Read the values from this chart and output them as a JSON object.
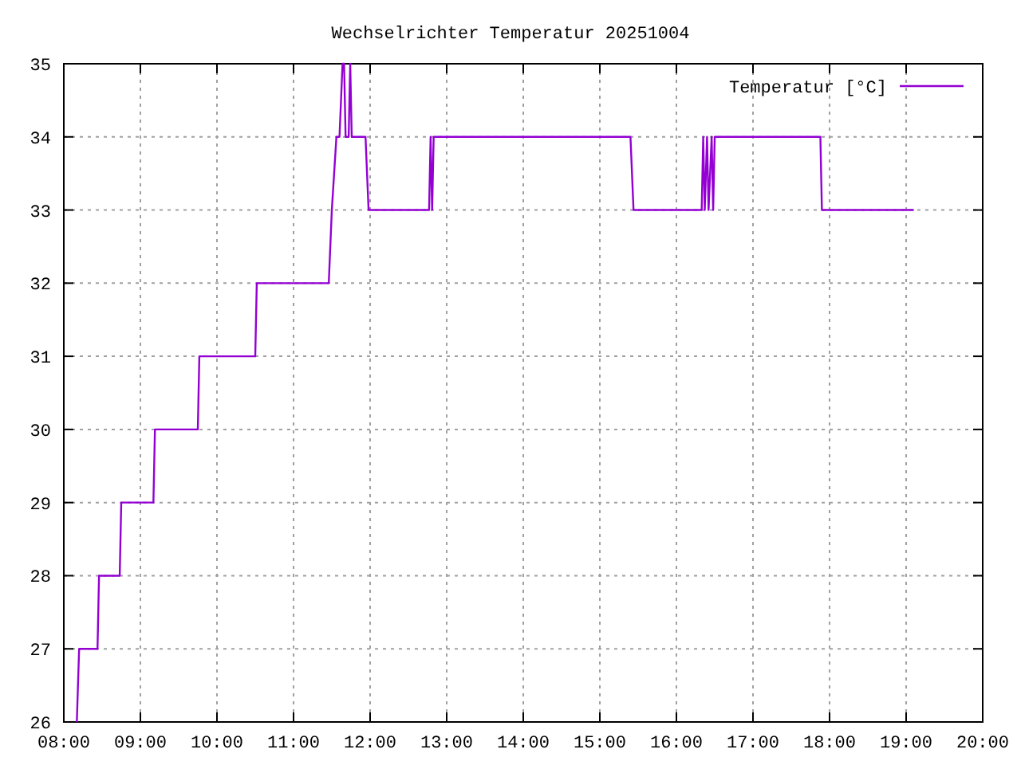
{
  "chart_data": {
    "type": "line",
    "title": "Wechselrichter Temperatur 20251004",
    "xlim": [
      8,
      20
    ],
    "xticks": [
      {
        "value": 8,
        "label": "08:00"
      },
      {
        "value": 9,
        "label": "09:00"
      },
      {
        "value": 10,
        "label": "10:00"
      },
      {
        "value": 11,
        "label": "11:00"
      },
      {
        "value": 12,
        "label": "12:00"
      },
      {
        "value": 13,
        "label": "13:00"
      },
      {
        "value": 14,
        "label": "14:00"
      },
      {
        "value": 15,
        "label": "15:00"
      },
      {
        "value": 16,
        "label": "16:00"
      },
      {
        "value": 17,
        "label": "17:00"
      },
      {
        "value": 18,
        "label": "18:00"
      },
      {
        "value": 19,
        "label": "19:00"
      },
      {
        "value": 20,
        "label": "20:00"
      }
    ],
    "ylim": [
      26,
      35
    ],
    "yticks": [
      26,
      27,
      28,
      29,
      30,
      31,
      32,
      33,
      34,
      35
    ],
    "grid": true,
    "legend": "top right",
    "marker": "none",
    "line_style": "solid",
    "series": [
      {
        "name": "Temperatur [°C]",
        "color": "#9400d3",
        "x": [
          8.17,
          8.2,
          8.44,
          8.46,
          8.73,
          8.75,
          9.17,
          9.19,
          9.75,
          9.77,
          10.5,
          10.52,
          11.46,
          11.5,
          11.56,
          11.6,
          11.64,
          11.66,
          11.68,
          11.72,
          11.74,
          11.76,
          11.94,
          11.98,
          12.77,
          12.79,
          12.81,
          12.83,
          15.4,
          15.44,
          16.33,
          16.35,
          16.37,
          16.4,
          16.42,
          16.46,
          16.48,
          16.5,
          17.88,
          17.9,
          19.1
        ],
        "values": [
          26,
          27,
          27,
          28,
          28,
          29,
          29,
          30,
          30,
          31,
          31,
          32,
          32,
          33,
          34,
          34,
          35,
          35,
          34,
          34,
          35,
          34,
          34,
          33,
          33,
          34,
          33,
          34,
          34,
          33,
          33,
          34,
          33,
          34,
          33,
          34,
          33,
          34,
          34,
          33,
          33
        ]
      }
    ]
  }
}
